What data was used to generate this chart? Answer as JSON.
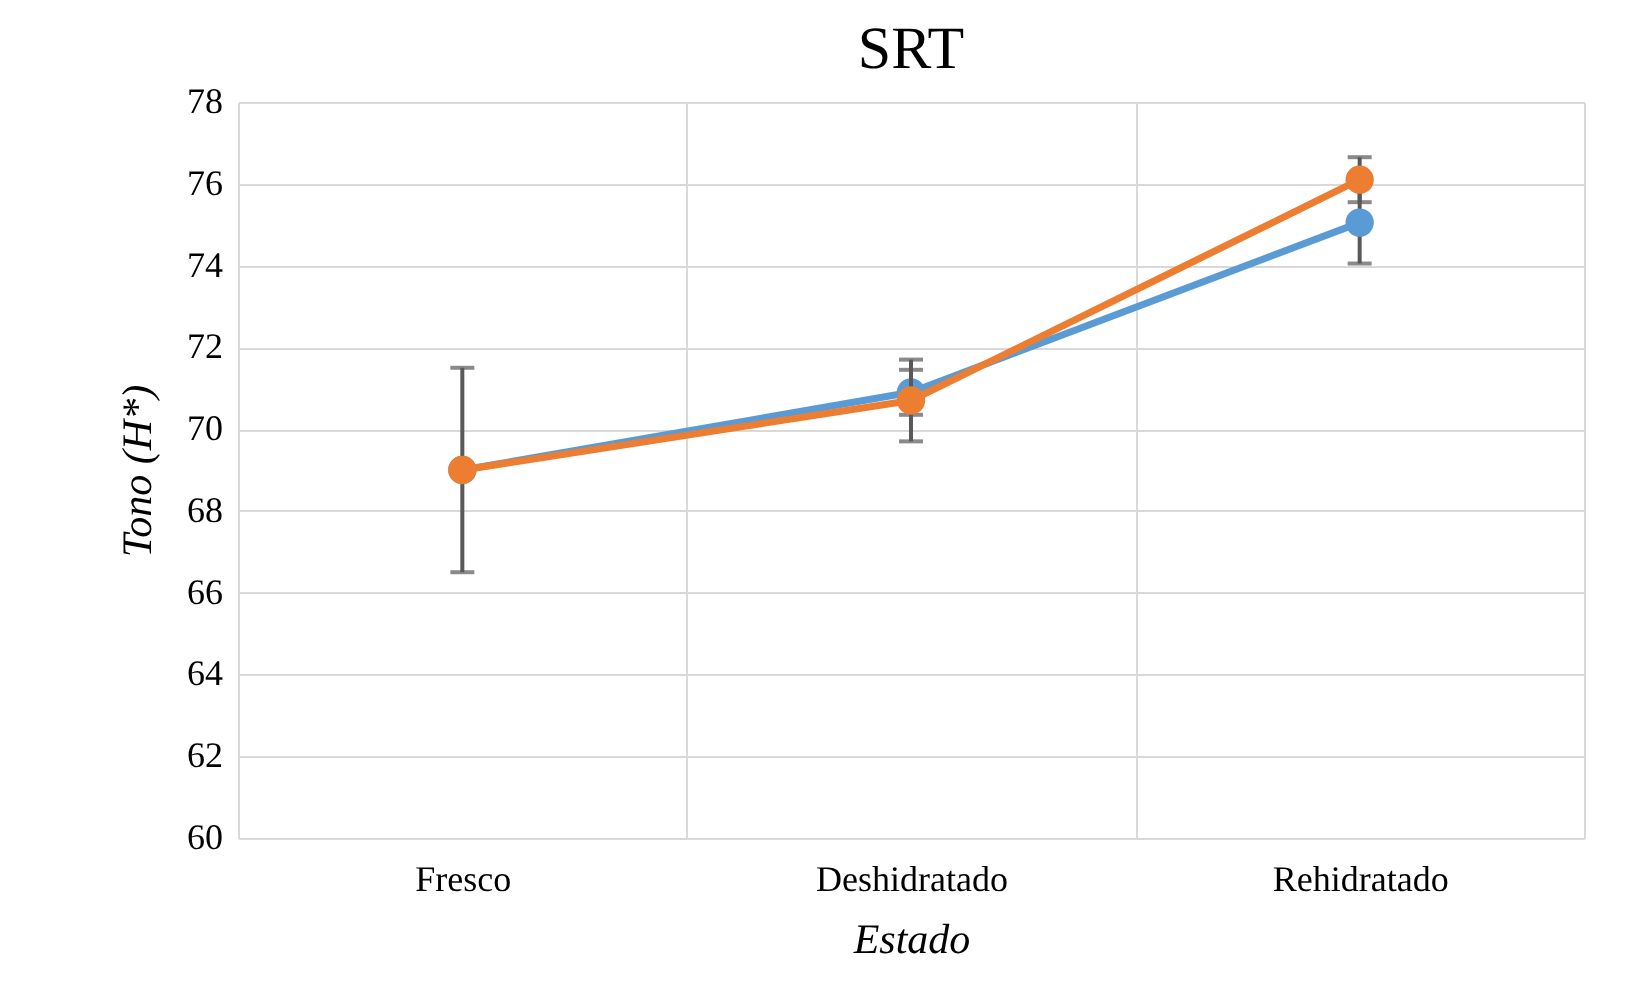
{
  "chart_data": {
    "type": "line",
    "title": "SRT",
    "xlabel": "Estado",
    "ylabel": "Tono (H*)",
    "categories": [
      "Fresco",
      "Deshidratado",
      "Rehidratado"
    ],
    "series": [
      {
        "color": "#5b9bd5",
        "values": [
          69.0,
          70.9,
          75.05
        ],
        "errors": [
          null,
          0.55,
          1.0
        ]
      },
      {
        "color": "#ed7d31",
        "values": [
          69.0,
          70.7,
          76.1
        ],
        "errors": [
          2.5,
          1.0,
          0.55
        ]
      }
    ],
    "ylim": [
      60,
      78
    ],
    "yticks": [
      60,
      62,
      64,
      66,
      68,
      70,
      72,
      74,
      76,
      78
    ],
    "grid": true,
    "marker": "circle",
    "line_style": "solid"
  }
}
